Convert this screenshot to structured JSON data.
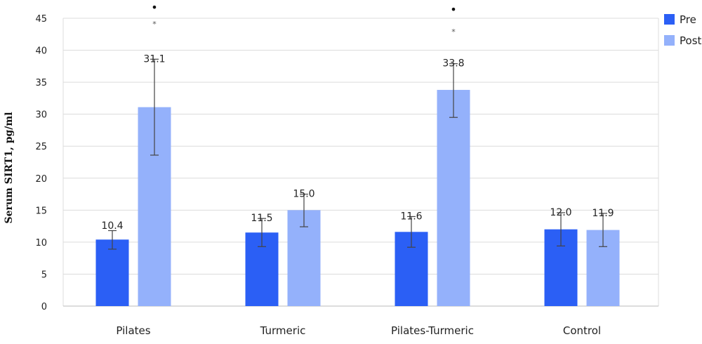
{
  "chart_data": {
    "type": "bar",
    "categories": [
      "Pilates",
      "Turmeric",
      "Pilates-Turmeric",
      "Control"
    ],
    "series": [
      {
        "name": "Pre",
        "color": "#2b5ff5",
        "values": [
          10.4,
          11.5,
          11.6,
          12.0
        ],
        "labels": [
          "10.4",
          "11.5",
          "11.6",
          "12.0"
        ],
        "err_low": [
          8.9,
          9.3,
          9.2,
          9.4
        ],
        "err_high": [
          11.8,
          13.7,
          14.0,
          14.6
        ]
      },
      {
        "name": "Post",
        "color": "#94b1fb",
        "values": [
          31.1,
          15.0,
          33.8,
          11.9
        ],
        "labels": [
          "31.1",
          "15.0",
          "33.8",
          "11.9"
        ],
        "err_low": [
          23.6,
          12.4,
          29.5,
          9.3
        ],
        "err_high": [
          38.6,
          17.5,
          37.9,
          14.5
        ]
      }
    ],
    "significance": [
      {
        "category": "Pilates",
        "series": "Post",
        "dot": "•",
        "star": "*"
      },
      {
        "category": "Pilates-Turmeric",
        "series": "Post",
        "dot": "•",
        "star": "*"
      }
    ],
    "ylabel": "Serum SIRT1, pg/ml",
    "xlabel": "",
    "ylim": [
      0,
      45
    ],
    "yticks": [
      0,
      5,
      10,
      15,
      20,
      25,
      30,
      35,
      40,
      45
    ],
    "grid": true,
    "legend": "top-right",
    "grid_color": "#dcdcdc",
    "errorbar_color": "#444444"
  }
}
